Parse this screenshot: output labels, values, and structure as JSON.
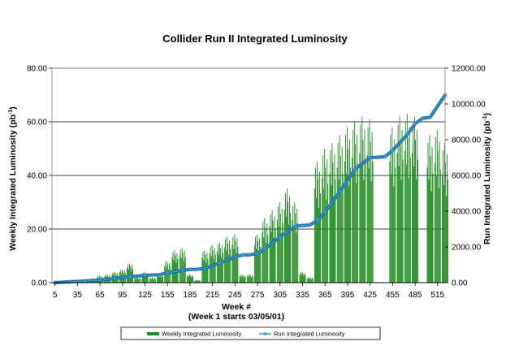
{
  "chart_data": {
    "type": "bar+line",
    "title": "Collider Run II Integrated Luminosity",
    "xlabel": "Week #",
    "xlabel_note": "(Week 1 starts 03/05/01)",
    "ylabel_left": "Weekly Integrated Luminosity (pb",
    "ylabel_right": "Run Integrated Luminosity (pb",
    "ylabel_unit_sup": "-1",
    "ylabel_close": ")",
    "xlim": [
      1,
      525
    ],
    "ylim_left": [
      0,
      80
    ],
    "ylim_right": [
      0,
      12000
    ],
    "x_ticks": [
      "5",
      "35",
      "65",
      "95",
      "125",
      "155",
      "185",
      "215",
      "245",
      "275",
      "305",
      "335",
      "365",
      "395",
      "425",
      "455",
      "485",
      "515"
    ],
    "y_ticks_left": [
      "0.00",
      "20.00",
      "40.00",
      "60.00",
      "80.00"
    ],
    "y_ticks_right": [
      "0.00",
      "2000.00",
      "4000.00",
      "6000.00",
      "8000.00",
      "10000.00",
      "12000.00"
    ],
    "grid": "horizontal",
    "legend_position": "bottom",
    "colors": {
      "bars": "#1e8c1e",
      "line": "#1f6f9f",
      "line_marker": "#3a9ad9",
      "grid": "#000000"
    },
    "series": [
      {
        "name": "Weekly Integrated Luminosity",
        "kind": "bar",
        "axis": "left",
        "x": [
          5,
          15,
          25,
          35,
          45,
          55,
          65,
          75,
          85,
          95,
          105,
          115,
          125,
          135,
          145,
          155,
          165,
          175,
          185,
          195,
          205,
          215,
          225,
          235,
          245,
          255,
          265,
          275,
          285,
          295,
          305,
          315,
          325,
          335,
          345,
          355,
          365,
          375,
          385,
          395,
          405,
          415,
          425,
          435,
          445,
          455,
          465,
          475,
          485,
          495,
          505,
          515,
          525
        ],
        "values": [
          0,
          0.4,
          0.6,
          0.8,
          1.2,
          1.5,
          2.5,
          3.0,
          4.0,
          5.0,
          7.0,
          2.0,
          4.0,
          2.0,
          3.0,
          8.0,
          12.0,
          13.0,
          3.0,
          1.0,
          12.0,
          14.0,
          15.0,
          17.0,
          18.0,
          3.0,
          3.0,
          18.0,
          24.0,
          27.0,
          30.0,
          35.0,
          30.0,
          4.0,
          2.0,
          45.0,
          50.0,
          52.0,
          55.0,
          58.0,
          60.0,
          62.0,
          61.0,
          0,
          0,
          58.0,
          62.0,
          63.0,
          62.0,
          0,
          55.0,
          57.0,
          52.0
        ]
      },
      {
        "name": "Run Integrated Luminosity",
        "kind": "line",
        "axis": "right",
        "x": [
          5,
          25,
          45,
          65,
          85,
          105,
          125,
          145,
          155,
          175,
          185,
          195,
          205,
          225,
          245,
          255,
          265,
          275,
          285,
          305,
          325,
          335,
          345,
          355,
          365,
          385,
          405,
          425,
          435,
          445,
          455,
          475,
          485,
          495,
          505,
          525
        ],
        "values": [
          0,
          50,
          90,
          140,
          230,
          330,
          410,
          450,
          550,
          680,
          740,
          750,
          790,
          1100,
          1450,
          1550,
          1560,
          1640,
          1900,
          2550,
          3150,
          3200,
          3230,
          3500,
          3950,
          5100,
          6350,
          7000,
          7020,
          7050,
          7400,
          8300,
          8900,
          9200,
          9250,
          10500
        ]
      }
    ]
  }
}
